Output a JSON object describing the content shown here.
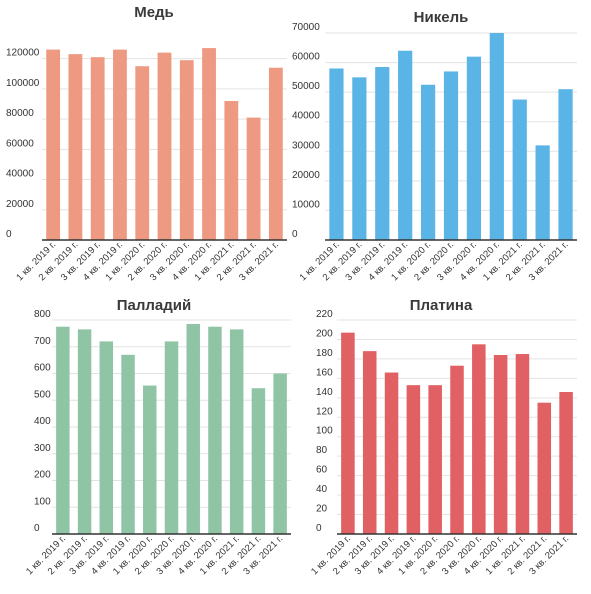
{
  "chart_data": [
    {
      "type": "bar",
      "title": "Медь",
      "color": "#ee9a83",
      "categories": [
        "1 кв. 2019 г.",
        "2 кв. 2019 г.",
        "3 кв. 2019 г.",
        "4 кв. 2019 г.",
        "1 кв. 2020 г.",
        "2 кв. 2020 г.",
        "3 кв. 2020 г.",
        "4 кв. 2020 г.",
        "1 кв. 2021 г.",
        "2 кв. 2021 г.",
        "3 кв. 2021 г."
      ],
      "values": [
        126000,
        123000,
        121000,
        126000,
        115000,
        124000,
        119000,
        127000,
        92000,
        81000,
        114000
      ],
      "yticks": [
        0,
        20000,
        40000,
        60000,
        80000,
        100000,
        120000
      ],
      "ylim": [
        0,
        135000
      ],
      "grid": true
    },
    {
      "type": "bar",
      "title": "Никель",
      "color": "#5ab4e5",
      "categories": [
        "1 кв. 2019 г.",
        "2 кв. 2019 г.",
        "3 кв. 2019 г.",
        "4 кв. 2019 г.",
        "1 кв. 2020 г.",
        "2 кв. 2020 г.",
        "3 кв. 2020 г.",
        "4 кв. 2020 г.",
        "1 кв. 2021 г.",
        "2 кв. 2021 г.",
        "3 кв. 2021 г."
      ],
      "values": [
        58000,
        55000,
        58500,
        64000,
        52500,
        57000,
        62000,
        70000,
        47500,
        32000,
        51000
      ],
      "yticks": [
        0,
        10000,
        20000,
        30000,
        40000,
        50000,
        60000,
        70000
      ],
      "ylim": [
        0,
        70000
      ],
      "grid": true
    },
    {
      "type": "bar",
      "title": "Палладий",
      "color": "#8fc4a5",
      "categories": [
        "1 кв. 2019 г.",
        "2 кв. 2019 г.",
        "3 кв. 2019 г.",
        "4 кв. 2019 г.",
        "1 кв. 2020 г.",
        "2 кв. 2020 г.",
        "3 кв. 2020 г.",
        "4 кв. 2020 г.",
        "1 кв. 2021 г.",
        "2 кв. 2021 г.",
        "3 кв. 2021 г."
      ],
      "values": [
        775,
        765,
        720,
        670,
        555,
        720,
        785,
        775,
        765,
        545,
        600
      ],
      "yticks": [
        0,
        100,
        200,
        300,
        400,
        500,
        600,
        700,
        800
      ],
      "ylim": [
        0,
        800
      ],
      "grid": true
    },
    {
      "type": "bar",
      "title": "Платина",
      "color": "#e06063",
      "categories": [
        "1 кв. 2019 г.",
        "2 кв. 2019 г.",
        "3 кв. 2019 г.",
        "4 кв. 2019 г.",
        "1 кв. 2020 г.",
        "2 кв. 2020 г.",
        "3 кв. 2020 г.",
        "4 кв. 2020 г.",
        "1 кв. 2021 г.",
        "2 кв. 2021 г.",
        "3 кв. 2021 г."
      ],
      "values": [
        207,
        188,
        166,
        153,
        153,
        173,
        195,
        184,
        185,
        135,
        146
      ],
      "yticks": [
        0,
        20,
        40,
        60,
        80,
        100,
        120,
        140,
        160,
        180,
        200,
        220
      ],
      "ylim": [
        0,
        220
      ],
      "grid": true
    }
  ]
}
